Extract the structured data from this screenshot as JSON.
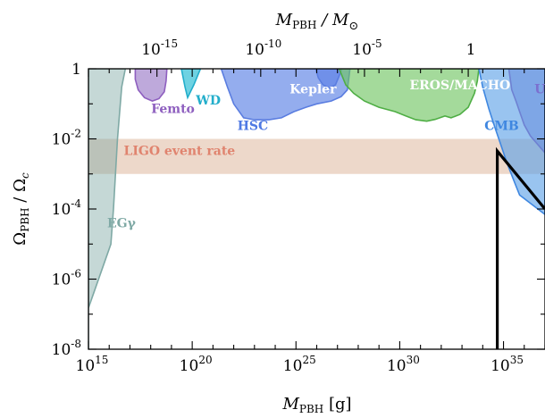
{
  "chart_data": {
    "type": "area",
    "xscale": "log",
    "yscale": "log",
    "xlim": [
      1000000000000000.0,
      1e+37
    ],
    "ylim": [
      1e-08,
      1
    ],
    "xlabel": {
      "main": "M",
      "sub": "PBH",
      "tail": " [g]"
    },
    "ylabel": {
      "main": "Ω",
      "sub": "PBH",
      "mid": " / Ω",
      "sub2": "c"
    },
    "top_axis_label": {
      "main": "M",
      "sub": "PBH",
      "mid": " / M",
      "sym": "⊙"
    },
    "x_ticks": [
      {
        "value": 1000000000000000.0,
        "base": "10",
        "exp": "15"
      },
      {
        "value": 1e+20,
        "base": "10",
        "exp": "20"
      },
      {
        "value": 1e+25,
        "base": "10",
        "exp": "25"
      },
      {
        "value": 1e+30,
        "base": "10",
        "exp": "30"
      },
      {
        "value": 1e+35,
        "base": "10",
        "exp": "35"
      }
    ],
    "y_ticks": [
      {
        "value": 1,
        "base": "1",
        "exp": ""
      },
      {
        "value": 0.01,
        "base": "10",
        "exp": "-2"
      },
      {
        "value": 0.0001,
        "base": "10",
        "exp": "-4"
      },
      {
        "value": 1e-06,
        "base": "10",
        "exp": "-6"
      },
      {
        "value": 1e-08,
        "base": "10",
        "exp": "-8"
      }
    ],
    "top_ticks": [
      {
        "value": 1e-15,
        "base": "10",
        "exp": "-15"
      },
      {
        "value": 1e-10,
        "base": "10",
        "exp": "-10"
      },
      {
        "value": 1e-05,
        "base": "10",
        "exp": "-5"
      },
      {
        "value": 1,
        "base": "1",
        "exp": ""
      }
    ],
    "regions": [
      {
        "name": "EGγ",
        "fill": "#7fa9a5",
        "stroke": "#7fa9a5",
        "opacity": 0.45,
        "label_pos": [
          8000000000000000.0,
          3e-05
        ],
        "label_color": "#7fa9a5",
        "boundary": [
          [
            1000000000000000.0,
            1.5e-07
          ],
          [
            1000000000000000.0,
            1e-08
          ],
          [
            1000000000000000.0,
            1
          ],
          [
            6e+16,
            1
          ],
          [
            4e+16,
            0.3
          ],
          [
            2.5e+16,
            0.01
          ],
          [
            1.6e+16,
            0.0001
          ],
          [
            1.2e+16,
            1e-05
          ],
          [
            1000000000000000.0,
            1.5e-07
          ]
        ]
      },
      {
        "name": "Femto",
        "fill": "#9b7bc7",
        "stroke": "#8e5fbf",
        "opacity": 0.65,
        "label_pos": [
          1.05e+18,
          0.055
        ],
        "label_color": "#8e5fbf",
        "boundary": [
          [
            1.8e+17,
            1
          ],
          [
            1.8e+17,
            0.5
          ],
          [
            2.5e+17,
            0.25
          ],
          [
            5e+17,
            0.15
          ],
          [
            1.2e+18,
            0.12
          ],
          [
            2.5e+18,
            0.14
          ],
          [
            4.5e+18,
            0.22
          ],
          [
            5.5e+18,
            0.45
          ],
          [
            6e+18,
            1
          ]
        ]
      },
      {
        "name": "WD",
        "fill": "#3ec3d8",
        "stroke": "#23aecb",
        "opacity": 0.75,
        "label_pos": [
          1.5e+20,
          0.095
        ],
        "label_color": "#23aecb",
        "boundary": [
          [
            3e+19,
            1
          ],
          [
            4.5e+19,
            0.3
          ],
          [
            6e+19,
            0.15
          ],
          [
            1.2e+20,
            0.35
          ],
          [
            2.5e+20,
            1
          ]
        ]
      },
      {
        "name": "HSC",
        "fill": "#6b8de8",
        "stroke": "#5a7de0",
        "opacity": 0.72,
        "label_pos": [
          1.5e+22,
          0.018
        ],
        "label_color": "#4f79e3",
        "boundary": [
          [
            2.5e+21,
            1
          ],
          [
            5e+21,
            0.3
          ],
          [
            1e+22,
            0.1
          ],
          [
            3e+22,
            0.04
          ],
          [
            1e+23,
            0.035
          ],
          [
            5e+23,
            0.035
          ],
          [
            2e+24,
            0.04
          ],
          [
            8e+24,
            0.06
          ],
          [
            3e+25,
            0.08
          ],
          [
            1e+26,
            0.1
          ],
          [
            5e+26,
            0.12
          ],
          [
            1.5e+27,
            0.16
          ],
          [
            3e+27,
            0.25
          ],
          [
            4e+27,
            1
          ]
        ]
      },
      {
        "name": "Kepler",
        "fill": "#6b8de8",
        "stroke": "#5a7de0",
        "opacity": 0.9,
        "label_pos": [
          5e+24,
          0.2
        ],
        "label_color": "#ffffff",
        "boundary": [
          [
            9e+25,
            1
          ],
          [
            1.2e+26,
            0.55
          ],
          [
            2e+26,
            0.35
          ],
          [
            4e+26,
            0.28
          ],
          [
            8e+26,
            0.35
          ],
          [
            1.3e+27,
            0.7
          ],
          [
            1.6e+27,
            1
          ]
        ]
      },
      {
        "name": "EROS/MACHO",
        "fill": "#6cc35e",
        "stroke": "#4fae45",
        "opacity": 0.62,
        "label_pos": [
          3e+30,
          0.26
        ],
        "label_color": "#ffffff",
        "boundary": [
          [
            1.2e+27,
            1
          ],
          [
            2.5e+27,
            0.35
          ],
          [
            6e+27,
            0.2
          ],
          [
            2e+28,
            0.12
          ],
          [
            1e+29,
            0.08
          ],
          [
            6e+29,
            0.06
          ],
          [
            2e+30,
            0.045
          ],
          [
            6e+30,
            0.035
          ],
          [
            2e+31,
            0.032
          ],
          [
            5e+31,
            0.036
          ],
          [
            1.5e+32,
            0.045
          ],
          [
            3e+32,
            0.04
          ],
          [
            8e+32,
            0.05
          ],
          [
            2e+33,
            0.08
          ],
          [
            4e+33,
            0.2
          ],
          [
            5.5e+33,
            0.45
          ],
          [
            6.5e+33,
            1
          ]
        ]
      },
      {
        "name": "CMB",
        "fill": "#5a9fe6",
        "stroke": "#3f87e0",
        "opacity": 0.62,
        "label_pos": [
          1.2e+34,
          0.018
        ],
        "label_color": "#3f87e0",
        "boundary": [
          [
            6.5e+33,
            1
          ],
          [
            1e+34,
            0.3
          ],
          [
            2e+34,
            0.07
          ],
          [
            4e+34,
            0.02
          ],
          [
            8e+34,
            0.006
          ],
          [
            1.5e+35,
            0.002
          ],
          [
            3e+35,
            0.0007
          ],
          [
            6e+35,
            0.00025
          ],
          [
            1e+37,
            7e-05
          ],
          [
            1e+37,
            1
          ]
        ]
      },
      {
        "name": "UFD",
        "fill": "#7b6fcf",
        "stroke": "#8e4fb0",
        "opacity": 0.55,
        "label_pos": [
          3.1e+36,
          0.2
        ],
        "label_color": "#7b6fcf",
        "boundary": [
          [
            1.8e+35,
            1
          ],
          [
            2.5e+35,
            0.25
          ],
          [
            4e+35,
            0.12
          ],
          [
            6e+35,
            0.06
          ],
          [
            1e+36,
            0.025
          ],
          [
            2e+36,
            0.012
          ],
          [
            1e+37,
            0.004
          ],
          [
            1e+37,
            1
          ]
        ]
      },
      {
        "name": "LIGO event rate",
        "fill": "#e6c8b4",
        "stroke": "none",
        "opacity": 0.7,
        "label_pos": [
          5e+16,
          0.0035
        ],
        "label_color": "#e0836e",
        "boundary": [
          [
            1000000000000000.0,
            0.01
          ],
          [
            1e+37,
            0.01
          ],
          [
            1e+37,
            0.001
          ],
          [
            1000000000000000.0,
            0.001
          ]
        ]
      }
    ],
    "line": {
      "color": "#000000",
      "points": [
        [
          5e+34,
          1e-08
        ],
        [
          5e+34,
          0.0045
        ],
        [
          1e+37,
          0.0001
        ]
      ]
    }
  }
}
